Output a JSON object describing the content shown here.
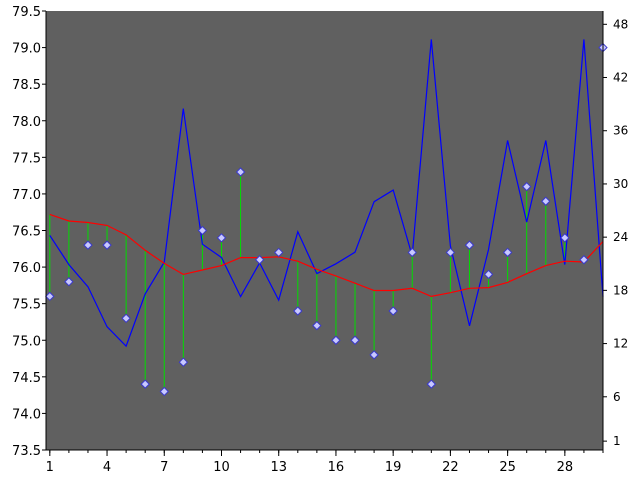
{
  "chart_data": {
    "type": "line",
    "title": "",
    "xlabel": "",
    "ylabel": "",
    "y2label": "",
    "background_color": "#606060",
    "x": [
      1,
      2,
      3,
      4,
      5,
      6,
      7,
      8,
      9,
      10,
      11,
      12,
      13,
      14,
      15,
      16,
      17,
      18,
      19,
      20,
      21,
      22,
      23,
      24,
      25,
      26,
      27,
      28,
      29,
      30
    ],
    "x_ticks": [
      1,
      4,
      7,
      10,
      13,
      16,
      19,
      22,
      25,
      28
    ],
    "ylim": [
      73.5,
      79.5
    ],
    "y_ticks": [
      73.5,
      74.0,
      74.5,
      75.0,
      75.5,
      76.0,
      76.5,
      77.0,
      77.5,
      78.0,
      78.5,
      79.0,
      79.5
    ],
    "y2lim": [
      0,
      49.5
    ],
    "y2_ticks": [
      1,
      6,
      12,
      18,
      24,
      30,
      36,
      42,
      48
    ],
    "series": [
      {
        "axis": "left",
        "style": "markers-with-stems-to-red-line",
        "color": "#00dd00",
        "marker_color": "#c8c8ff",
        "values": [
          75.6,
          75.8,
          76.3,
          76.3,
          75.3,
          74.4,
          74.3,
          74.7,
          76.5,
          76.4,
          77.3,
          76.1,
          76.2,
          75.4,
          75.2,
          75.0,
          75.0,
          74.8,
          75.4,
          76.2,
          74.4,
          76.2,
          76.3,
          75.9,
          76.2,
          77.1,
          76.9,
          76.4,
          76.1,
          79.0
        ]
      },
      {
        "axis": "left",
        "style": "line",
        "color": "#ff0000",
        "values": [
          76.72,
          76.63,
          76.61,
          76.57,
          76.44,
          76.23,
          76.05,
          75.9,
          75.96,
          76.02,
          76.13,
          76.13,
          76.14,
          76.08,
          75.97,
          75.88,
          75.78,
          75.68,
          75.68,
          75.71,
          75.6,
          75.65,
          75.71,
          75.72,
          75.79,
          75.91,
          76.02,
          76.08,
          76.07,
          76.35
        ]
      },
      {
        "axis": "right",
        "style": "line",
        "color": "#0000ff",
        "values": [
          24.2,
          20.9,
          18.4,
          13.9,
          11.7,
          17.6,
          21.2,
          38.5,
          23.2,
          21.7,
          17.3,
          21.1,
          16.9,
          24.6,
          19.9,
          21.0,
          22.3,
          28.0,
          29.3,
          21.9,
          46.3,
          23.0,
          14.0,
          22.6,
          34.9,
          25.7,
          34.9,
          20.9,
          46.3,
          17.3
        ]
      }
    ],
    "grid": false,
    "legend": "none"
  }
}
